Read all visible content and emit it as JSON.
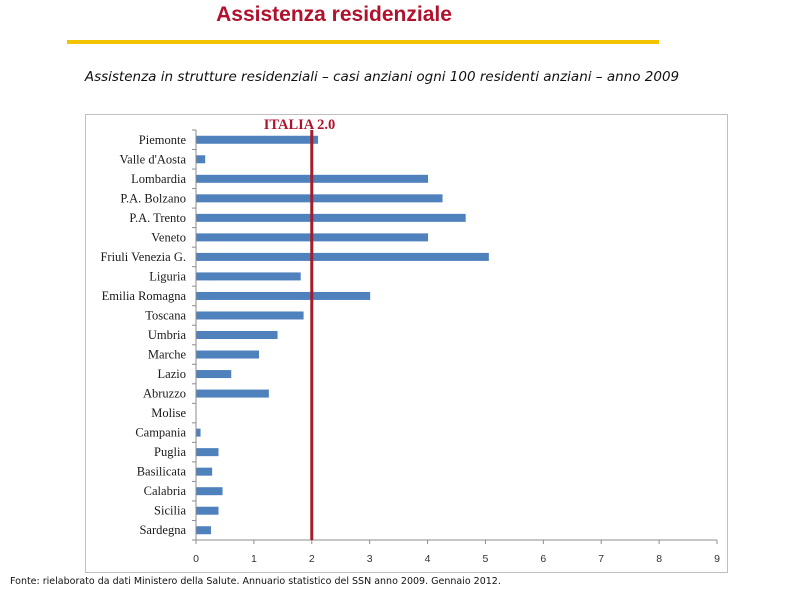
{
  "header": {
    "title": "Assistenza residenziale",
    "subtitle": "Assistenza in strutture residenziali – casi anziani ogni 100 residenti anziani – anno 2009"
  },
  "footer": {
    "source": "Fonte: rielaborato da dati Ministero della Salute. Annuario statistico del SSN anno 2009. Gennaio 2012."
  },
  "colors": {
    "title": "#b0122e",
    "accent_line": "#f2c400",
    "bar": "#4f81bd",
    "reference_line": "#a31d2b"
  },
  "chart_data": {
    "type": "bar",
    "orientation": "horizontal",
    "title": "",
    "xlabel": "",
    "ylabel": "",
    "xlim": [
      0,
      9
    ],
    "xticks": [
      0,
      1,
      2,
      3,
      4,
      5,
      6,
      7,
      8,
      9
    ],
    "grid": false,
    "categories": [
      "Piemonte",
      "Valle d'Aosta",
      "Lombardia",
      "P.A. Bolzano",
      "P.A. Trento",
      "Veneto",
      "Friuli Venezia G.",
      "Liguria",
      "Emilia Romagna",
      "Toscana",
      "Umbria",
      "Marche",
      "Lazio",
      "Abruzzo",
      "Molise",
      "Campania",
      "Puglia",
      "Basilicata",
      "Calabria",
      "Sicilia",
      "Sardegna"
    ],
    "values": [
      2.1,
      0.15,
      4.0,
      4.25,
      4.65,
      4.0,
      5.05,
      1.8,
      3.0,
      1.85,
      1.4,
      1.08,
      0.6,
      1.25,
      0.0,
      0.07,
      0.38,
      0.27,
      0.45,
      0.38,
      0.25
    ],
    "reference": {
      "label": "ITALIA  2.0",
      "value": 2.0
    }
  }
}
